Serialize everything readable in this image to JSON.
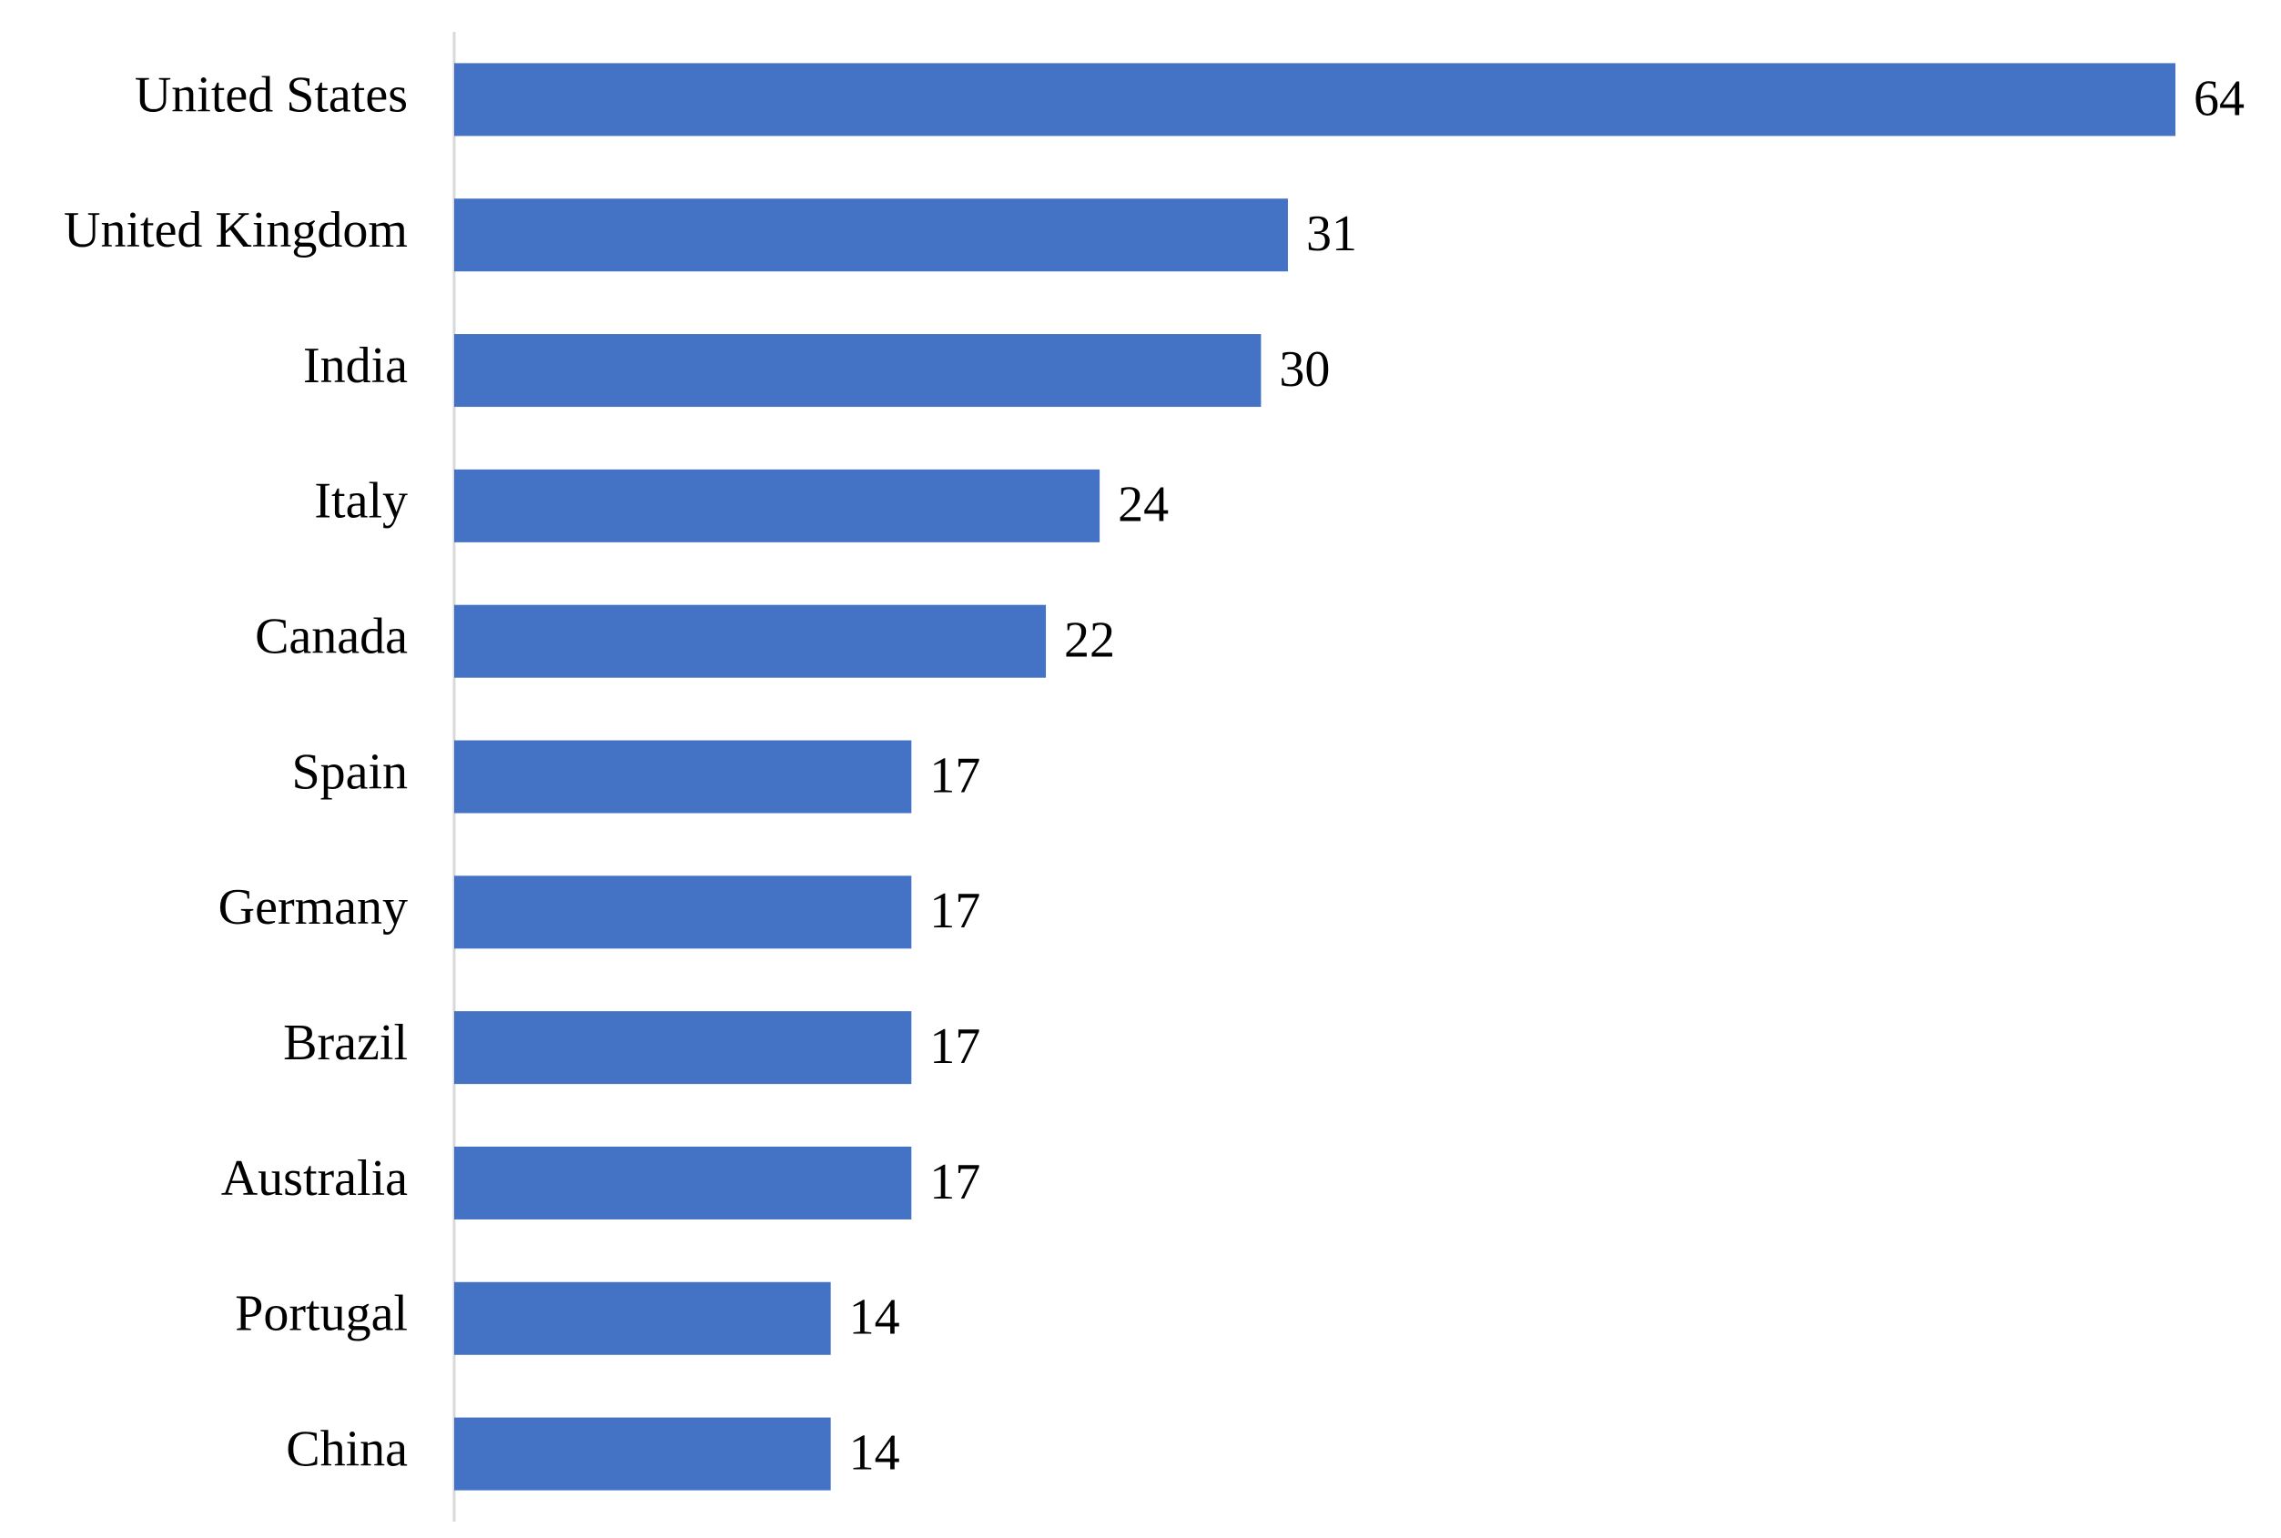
{
  "chart_data": {
    "type": "bar",
    "orientation": "horizontal",
    "categories": [
      "United States",
      "United Kingdom",
      "India",
      "Italy",
      "Canada",
      "Spain",
      "Germany",
      "Brazil",
      "Australia",
      "Portugal",
      "China"
    ],
    "values": [
      64,
      31,
      30,
      24,
      22,
      17,
      17,
      17,
      17,
      14,
      14
    ],
    "color": "#4472c4",
    "grid": false,
    "data_labels": true
  }
}
